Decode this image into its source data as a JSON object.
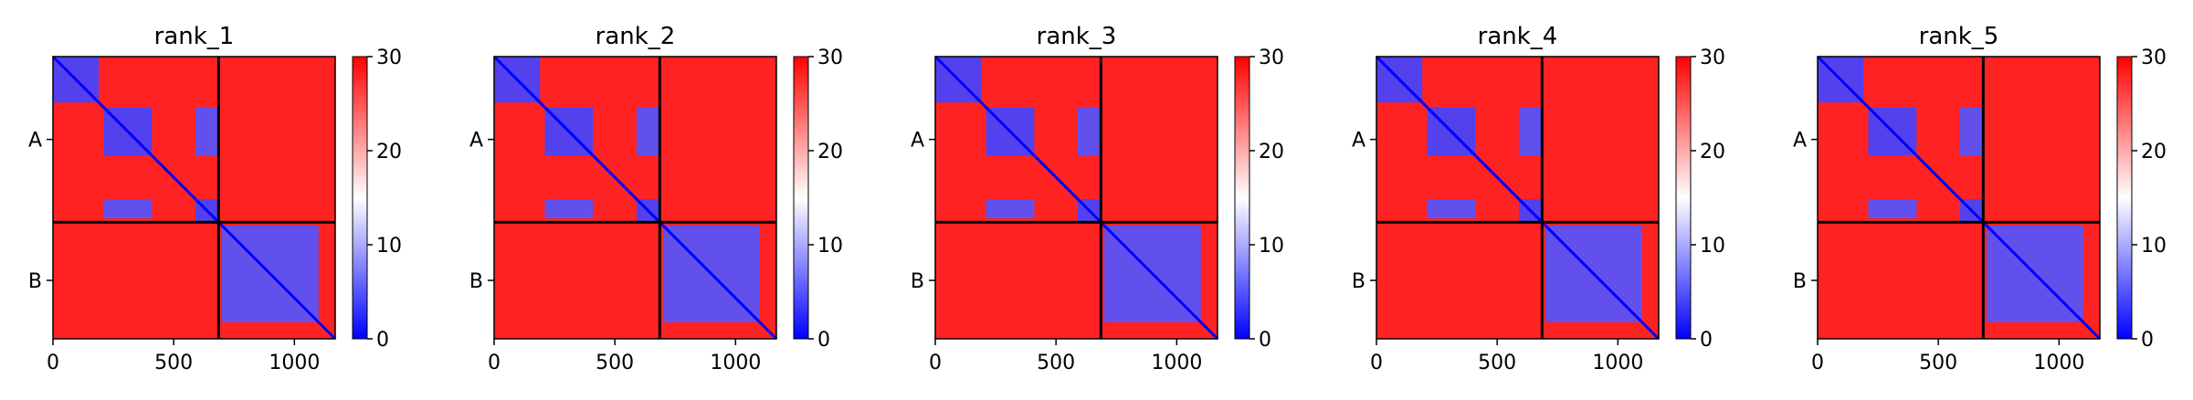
{
  "chart_data": [
    {
      "type": "heatmap",
      "title": "rank_1",
      "xlabel": "",
      "ylabel": "",
      "x_ticks": [
        "0",
        "500",
        "1000"
      ],
      "x_tick_values": [
        0,
        500,
        1000
      ],
      "xlim": [
        0,
        1169
      ],
      "y_tick_labels": [
        "A",
        "B"
      ],
      "y_tick_values": [
        343,
        927
      ],
      "chain_boundary": 686,
      "colorbar": {
        "ticks": [
          "0",
          "10",
          "20",
          "30"
        ],
        "tick_values": [
          0,
          10,
          20,
          30
        ],
        "range": [
          0,
          30
        ],
        "cmap": "bwr"
      },
      "background_value": 28,
      "regions": [
        {
          "x": [
            0,
            190
          ],
          "y": [
            0,
            190
          ],
          "value": 4
        },
        {
          "x": [
            210,
            410
          ],
          "y": [
            210,
            410
          ],
          "value": 4
        },
        {
          "x": [
            210,
            410
          ],
          "y": [
            590,
            670
          ],
          "value": 5
        },
        {
          "x": [
            590,
            690
          ],
          "y": [
            210,
            410
          ],
          "value": 5
        },
        {
          "x": [
            590,
            690
          ],
          "y": [
            590,
            686
          ],
          "value": 4
        },
        {
          "x": [
            700,
            1100
          ],
          "y": [
            700,
            1100
          ],
          "value": 5
        }
      ]
    },
    {
      "type": "heatmap",
      "title": "rank_2",
      "xlabel": "",
      "ylabel": "",
      "x_ticks": [
        "0",
        "500",
        "1000"
      ],
      "x_tick_values": [
        0,
        500,
        1000
      ],
      "xlim": [
        0,
        1169
      ],
      "y_tick_labels": [
        "A",
        "B"
      ],
      "y_tick_values": [
        343,
        927
      ],
      "chain_boundary": 686,
      "colorbar": {
        "ticks": [
          "0",
          "10",
          "20",
          "30"
        ],
        "tick_values": [
          0,
          10,
          20,
          30
        ],
        "range": [
          0,
          30
        ],
        "cmap": "bwr"
      },
      "background_value": 28,
      "regions": [
        {
          "x": [
            0,
            190
          ],
          "y": [
            0,
            190
          ],
          "value": 4
        },
        {
          "x": [
            210,
            410
          ],
          "y": [
            210,
            410
          ],
          "value": 4
        },
        {
          "x": [
            210,
            410
          ],
          "y": [
            590,
            670
          ],
          "value": 5
        },
        {
          "x": [
            590,
            690
          ],
          "y": [
            210,
            410
          ],
          "value": 5
        },
        {
          "x": [
            590,
            690
          ],
          "y": [
            590,
            686
          ],
          "value": 4
        },
        {
          "x": [
            700,
            1100
          ],
          "y": [
            700,
            1100
          ],
          "value": 5
        }
      ]
    },
    {
      "type": "heatmap",
      "title": "rank_3",
      "xlabel": "",
      "ylabel": "",
      "x_ticks": [
        "0",
        "500",
        "1000"
      ],
      "x_tick_values": [
        0,
        500,
        1000
      ],
      "xlim": [
        0,
        1169
      ],
      "y_tick_labels": [
        "A",
        "B"
      ],
      "y_tick_values": [
        343,
        927
      ],
      "chain_boundary": 686,
      "colorbar": {
        "ticks": [
          "0",
          "10",
          "20",
          "30"
        ],
        "tick_values": [
          0,
          10,
          20,
          30
        ],
        "range": [
          0,
          30
        ],
        "cmap": "bwr"
      },
      "background_value": 28,
      "regions": [
        {
          "x": [
            0,
            190
          ],
          "y": [
            0,
            190
          ],
          "value": 4
        },
        {
          "x": [
            210,
            410
          ],
          "y": [
            210,
            410
          ],
          "value": 4
        },
        {
          "x": [
            210,
            410
          ],
          "y": [
            590,
            670
          ],
          "value": 5
        },
        {
          "x": [
            590,
            690
          ],
          "y": [
            210,
            410
          ],
          "value": 5
        },
        {
          "x": [
            590,
            690
          ],
          "y": [
            590,
            686
          ],
          "value": 4
        },
        {
          "x": [
            700,
            1100
          ],
          "y": [
            700,
            1100
          ],
          "value": 5
        }
      ]
    },
    {
      "type": "heatmap",
      "title": "rank_4",
      "xlabel": "",
      "ylabel": "",
      "x_ticks": [
        "0",
        "500",
        "1000"
      ],
      "x_tick_values": [
        0,
        500,
        1000
      ],
      "xlim": [
        0,
        1169
      ],
      "y_tick_labels": [
        "A",
        "B"
      ],
      "y_tick_values": [
        343,
        927
      ],
      "chain_boundary": 686,
      "colorbar": {
        "ticks": [
          "0",
          "10",
          "20",
          "30"
        ],
        "tick_values": [
          0,
          10,
          20,
          30
        ],
        "range": [
          0,
          30
        ],
        "cmap": "bwr"
      },
      "background_value": 28,
      "regions": [
        {
          "x": [
            0,
            190
          ],
          "y": [
            0,
            190
          ],
          "value": 4
        },
        {
          "x": [
            210,
            410
          ],
          "y": [
            210,
            410
          ],
          "value": 4
        },
        {
          "x": [
            210,
            410
          ],
          "y": [
            590,
            670
          ],
          "value": 5
        },
        {
          "x": [
            590,
            690
          ],
          "y": [
            210,
            410
          ],
          "value": 5
        },
        {
          "x": [
            590,
            690
          ],
          "y": [
            590,
            686
          ],
          "value": 4
        },
        {
          "x": [
            700,
            1100
          ],
          "y": [
            700,
            1100
          ],
          "value": 5
        }
      ]
    },
    {
      "type": "heatmap",
      "title": "rank_5",
      "xlabel": "",
      "ylabel": "",
      "x_ticks": [
        "0",
        "500",
        "1000"
      ],
      "x_tick_values": [
        0,
        500,
        1000
      ],
      "xlim": [
        0,
        1169
      ],
      "y_tick_labels": [
        "A",
        "B"
      ],
      "y_tick_values": [
        343,
        927
      ],
      "chain_boundary": 686,
      "colorbar": {
        "ticks": [
          "0",
          "10",
          "20",
          "30"
        ],
        "tick_values": [
          0,
          10,
          20,
          30
        ],
        "range": [
          0,
          30
        ],
        "cmap": "bwr"
      },
      "background_value": 28,
      "regions": [
        {
          "x": [
            0,
            190
          ],
          "y": [
            0,
            190
          ],
          "value": 4
        },
        {
          "x": [
            210,
            410
          ],
          "y": [
            210,
            410
          ],
          "value": 4
        },
        {
          "x": [
            210,
            410
          ],
          "y": [
            590,
            670
          ],
          "value": 5
        },
        {
          "x": [
            590,
            690
          ],
          "y": [
            210,
            410
          ],
          "value": 5
        },
        {
          "x": [
            590,
            690
          ],
          "y": [
            590,
            686
          ],
          "value": 4
        },
        {
          "x": [
            700,
            1100
          ],
          "y": [
            700,
            1100
          ],
          "value": 5
        }
      ]
    }
  ],
  "colors": {
    "low": "#0000ff",
    "mid": "#ffffff",
    "high": "#ff0000",
    "line": "#000000"
  }
}
